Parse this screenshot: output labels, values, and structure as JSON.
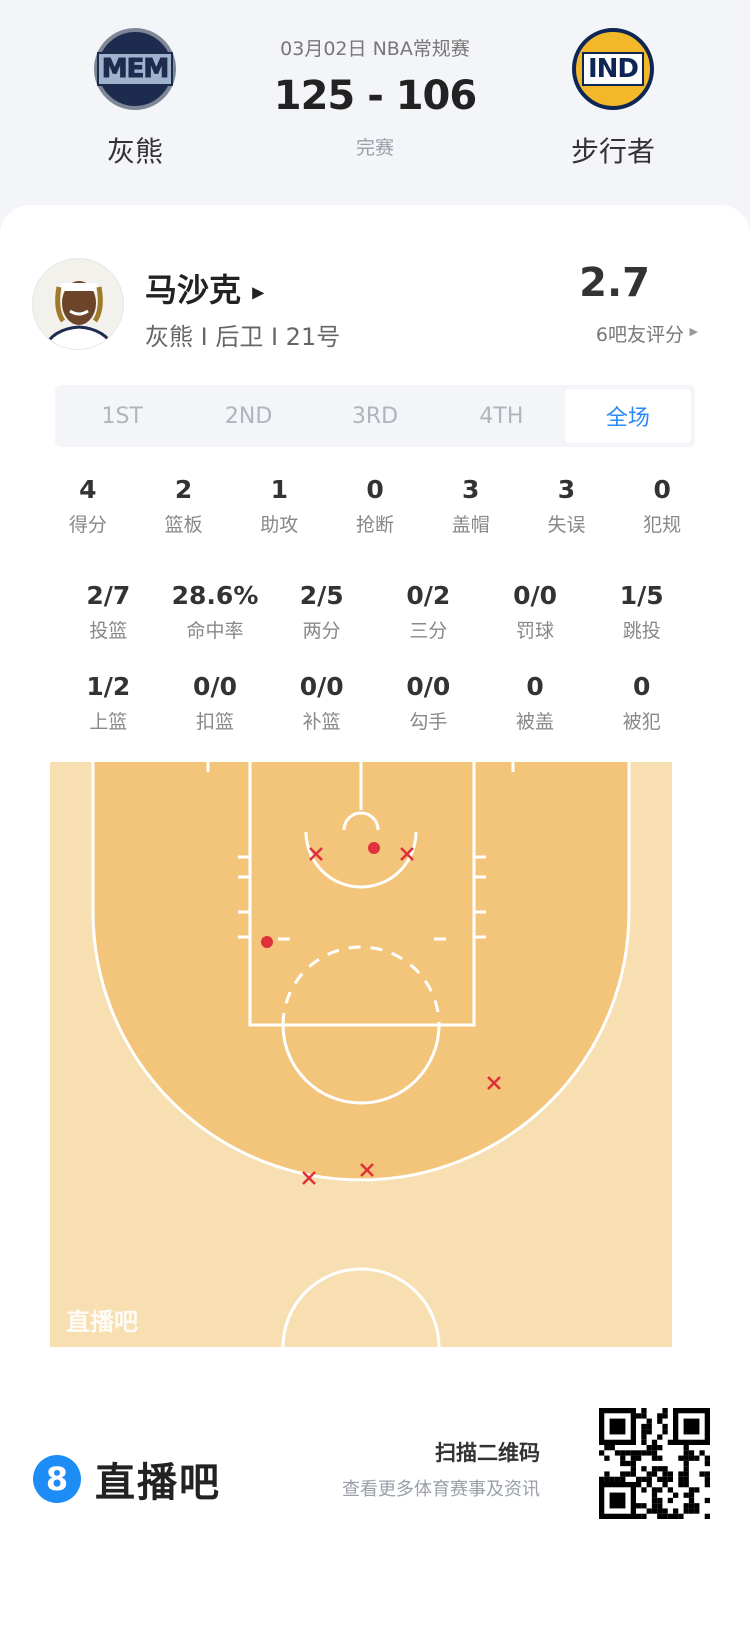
{
  "match": {
    "date": "03月02日 NBA常规赛",
    "score": "125 - 106",
    "status": "完赛",
    "home": {
      "name": "灰熊",
      "abbr": "MEM"
    },
    "away": {
      "name": "步行者",
      "abbr": "IND"
    }
  },
  "player": {
    "name": "马沙克",
    "meta": "灰熊 I 后卫 I 21号",
    "rating": "2.7",
    "rating_label": "6吧友评分"
  },
  "tabs": [
    {
      "label": "1ST"
    },
    {
      "label": "2ND"
    },
    {
      "label": "3RD"
    },
    {
      "label": "4TH"
    },
    {
      "label": "全场",
      "active": true
    }
  ],
  "stats_row1": [
    {
      "v": "4",
      "l": "得分"
    },
    {
      "v": "2",
      "l": "篮板"
    },
    {
      "v": "1",
      "l": "助攻"
    },
    {
      "v": "0",
      "l": "抢断"
    },
    {
      "v": "3",
      "l": "盖帽"
    },
    {
      "v": "3",
      "l": "失误"
    },
    {
      "v": "0",
      "l": "犯规"
    }
  ],
  "stats_row2": [
    {
      "v": "2/7",
      "l": "投篮"
    },
    {
      "v": "28.6%",
      "l": "命中率"
    },
    {
      "v": "2/5",
      "l": "两分"
    },
    {
      "v": "0/2",
      "l": "三分"
    },
    {
      "v": "0/0",
      "l": "罚球"
    },
    {
      "v": "1/5",
      "l": "跳投"
    }
  ],
  "stats_row3": [
    {
      "v": "1/2",
      "l": "上篮"
    },
    {
      "v": "0/0",
      "l": "扣篮"
    },
    {
      "v": "0/0",
      "l": "补篮"
    },
    {
      "v": "0/0",
      "l": "勾手"
    },
    {
      "v": "0",
      "l": "被盖"
    },
    {
      "v": "0",
      "l": "被犯"
    }
  ],
  "court": {
    "watermark": "直播吧",
    "shots": [
      {
        "result": "miss"
      },
      {
        "result": "make"
      },
      {
        "result": "miss"
      },
      {
        "result": "make"
      },
      {
        "result": "miss"
      },
      {
        "result": "miss"
      },
      {
        "result": "miss"
      }
    ],
    "colors": {
      "outer": "#f7dfb2",
      "inner": "#f3c57a",
      "make": "#e0303a",
      "miss": "#e0303a"
    }
  },
  "footer": {
    "brand": "直播吧",
    "brand_icon": "8",
    "qr_title": "扫描二维码",
    "qr_sub": "查看更多体育赛事及资讯"
  },
  "accent": "#2b8af7"
}
